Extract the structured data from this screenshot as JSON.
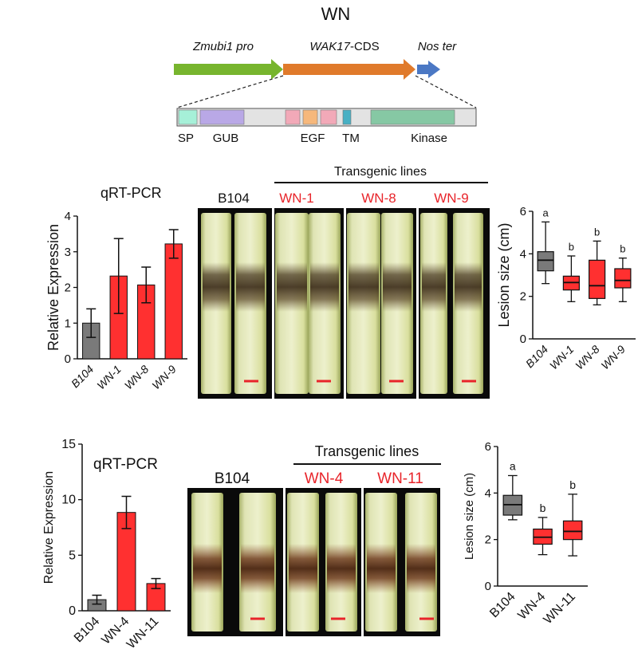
{
  "title": "WN",
  "construct": {
    "promoter": "Zmubi1 pro",
    "cds_italic": "WAK17",
    "cds_suffix": "-CDS",
    "terminator": "Nos ter",
    "domains": [
      "SP",
      "GUB",
      "EGF",
      "TM",
      "Kinase"
    ],
    "colors": {
      "promoter": "#77b52e",
      "cds": "#e07a2b",
      "terminator": "#4b78c4"
    }
  },
  "panel_top": {
    "photo_control_label": "B104",
    "transgenic_header": "Transgenic lines",
    "photo_labels": [
      "WN-1",
      "WN-8",
      "WN-9"
    ],
    "chart_data": [
      {
        "type": "bar",
        "title": "qRT-PCR",
        "ylabel": "Relative Expression",
        "categories": [
          "B104",
          "WN-1",
          "WN-8",
          "WN-9"
        ],
        "values": [
          1.0,
          2.32,
          2.07,
          3.22
        ],
        "errors": [
          0.4,
          1.05,
          0.5,
          0.4
        ],
        "ylim": [
          0,
          4
        ],
        "yticks": [
          "0",
          "1",
          "2",
          "3",
          "4"
        ],
        "colors": [
          "#7a7a7a",
          "#ff3030",
          "#ff3030",
          "#ff3030"
        ]
      },
      {
        "type": "box",
        "ylabel": "Lesion size (cm)",
        "categories": [
          "B104",
          "WN-1",
          "WN-8",
          "WN-9"
        ],
        "boxes": [
          {
            "min": 2.6,
            "q1": 3.2,
            "median": 3.7,
            "q3": 4.1,
            "max": 5.5,
            "letter": "a"
          },
          {
            "min": 1.75,
            "q1": 2.3,
            "median": 2.65,
            "q3": 2.95,
            "max": 3.9,
            "letter": "b"
          },
          {
            "min": 1.6,
            "q1": 1.9,
            "median": 2.5,
            "q3": 3.7,
            "max": 4.6,
            "letter": "b"
          },
          {
            "min": 1.75,
            "q1": 2.4,
            "median": 2.75,
            "q3": 3.3,
            "max": 3.8,
            "letter": "b"
          }
        ],
        "ylim": [
          0,
          6
        ],
        "yticks": [
          "0",
          "2",
          "4",
          "6"
        ],
        "colors": [
          "#7a7a7a",
          "#ff3030",
          "#ff3030",
          "#ff3030"
        ]
      }
    ]
  },
  "panel_bottom": {
    "photo_control_label": "B104",
    "transgenic_header": "Transgenic lines",
    "photo_labels": [
      "WN-4",
      "WN-11"
    ],
    "chart_data": [
      {
        "type": "bar",
        "title": "qRT-PCR",
        "ylabel": "Relative Expression",
        "categories": [
          "B104",
          "WN-4",
          "WN-11"
        ],
        "values": [
          1.0,
          8.85,
          2.45
        ],
        "errors": [
          0.4,
          1.45,
          0.45
        ],
        "ylim": [
          0,
          15
        ],
        "yticks": [
          "0",
          "5",
          "10",
          "15"
        ],
        "colors": [
          "#7a7a7a",
          "#ff3030",
          "#ff3030"
        ]
      },
      {
        "type": "box",
        "ylabel": "Lesion size (cm)",
        "categories": [
          "B104",
          "WN-4",
          "WN-11"
        ],
        "boxes": [
          {
            "min": 2.85,
            "q1": 3.05,
            "median": 3.5,
            "q3": 3.9,
            "max": 4.75,
            "letter": "a"
          },
          {
            "min": 1.35,
            "q1": 1.8,
            "median": 2.1,
            "q3": 2.45,
            "max": 2.95,
            "letter": "b"
          },
          {
            "min": 1.3,
            "q1": 2.0,
            "median": 2.35,
            "q3": 2.8,
            "max": 3.95,
            "letter": "b"
          }
        ],
        "ylim": [
          0,
          6
        ],
        "yticks": [
          "0",
          "2",
          "4",
          "6"
        ],
        "colors": [
          "#7a7a7a",
          "#ff3030",
          "#ff3030"
        ]
      }
    ]
  }
}
